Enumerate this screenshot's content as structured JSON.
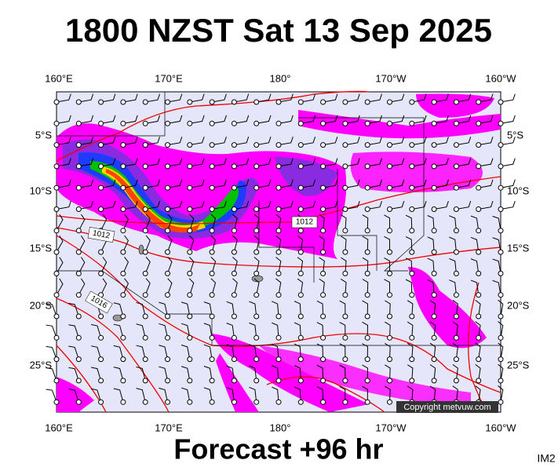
{
  "title": "1800 NZST Sat 13 Sep 2025",
  "map": {
    "top_labels": [
      "160°E",
      "170°E",
      "180°",
      "170°W",
      "160°W"
    ],
    "bottom_labels": [
      "160°E",
      "170°E",
      "180°",
      "170°W",
      "160°W"
    ],
    "left_labels": [
      "5°S",
      "10°S",
      "15°S",
      "20°S",
      "25°S"
    ],
    "right_labels": [
      "5°S",
      "10°S",
      "15°S",
      "20°S",
      "25°S"
    ],
    "isobar_labels": [
      "1012",
      "1012",
      "1016"
    ],
    "copyright": "Copyright metvuw.com"
  },
  "footer": {
    "forecast": "Forecast +96 hr",
    "code": "IM2"
  }
}
